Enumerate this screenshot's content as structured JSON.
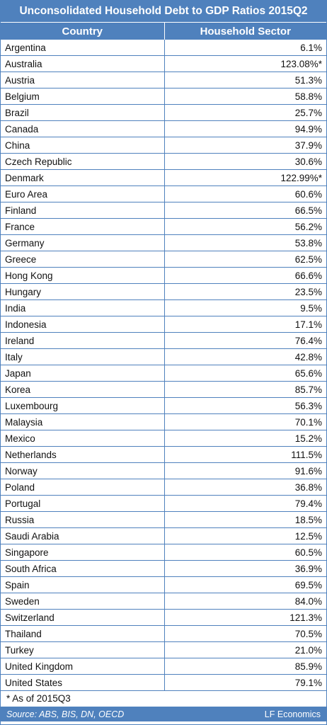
{
  "title": "Unconsolidated Household Debt to GDP Ratios 2015Q2",
  "footnote": "* As of 2015Q3",
  "source": "Source: ABS, BIS, DN, OECD",
  "brand": "LF Economics",
  "colors": {
    "header_bg": "#4f81bd",
    "header_text": "#ffffff",
    "grid": "#4f81bd"
  },
  "chart_data": {
    "type": "table",
    "title": "Unconsolidated Household Debt to GDP Ratios 2015Q2",
    "columns": [
      "Country",
      "Household Sector"
    ],
    "rows": [
      [
        "Argentina",
        "6.1%"
      ],
      [
        "Australia",
        "123.08%*"
      ],
      [
        "Austria",
        "51.3%"
      ],
      [
        "Belgium",
        "58.8%"
      ],
      [
        "Brazil",
        "25.7%"
      ],
      [
        "Canada",
        "94.9%"
      ],
      [
        "China",
        "37.9%"
      ],
      [
        "Czech Republic",
        "30.6%"
      ],
      [
        "Denmark",
        "122.99%*"
      ],
      [
        "Euro Area",
        "60.6%"
      ],
      [
        "Finland",
        "66.5%"
      ],
      [
        "France",
        "56.2%"
      ],
      [
        "Germany",
        "53.8%"
      ],
      [
        "Greece",
        "62.5%"
      ],
      [
        "Hong Kong",
        "66.6%"
      ],
      [
        "Hungary",
        "23.5%"
      ],
      [
        "India",
        "9.5%"
      ],
      [
        "Indonesia",
        "17.1%"
      ],
      [
        "Ireland",
        "76.4%"
      ],
      [
        "Italy",
        "42.8%"
      ],
      [
        "Japan",
        "65.6%"
      ],
      [
        "Korea",
        "85.7%"
      ],
      [
        "Luxembourg",
        "56.3%"
      ],
      [
        "Malaysia",
        "70.1%"
      ],
      [
        "Mexico",
        "15.2%"
      ],
      [
        "Netherlands",
        "111.5%"
      ],
      [
        "Norway",
        "91.6%"
      ],
      [
        "Poland",
        "36.8%"
      ],
      [
        "Portugal",
        "79.4%"
      ],
      [
        "Russia",
        "18.5%"
      ],
      [
        "Saudi Arabia",
        "12.5%"
      ],
      [
        "Singapore",
        "60.5%"
      ],
      [
        "South Africa",
        "36.9%"
      ],
      [
        "Spain",
        "69.5%"
      ],
      [
        "Sweden",
        "84.0%"
      ],
      [
        "Switzerland",
        "121.3%"
      ],
      [
        "Thailand",
        "70.5%"
      ],
      [
        "Turkey",
        "21.0%"
      ],
      [
        "United Kingdom",
        "85.9%"
      ],
      [
        "United States",
        "79.1%"
      ]
    ]
  }
}
